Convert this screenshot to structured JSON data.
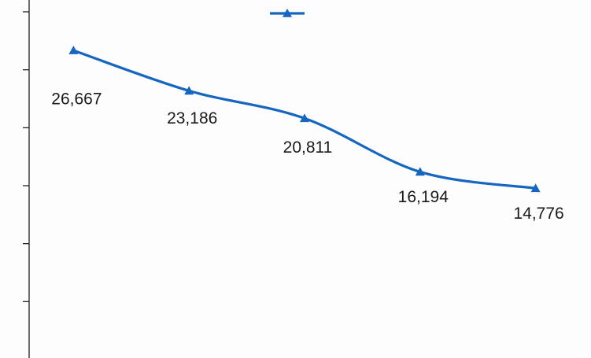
{
  "chart_data": {
    "type": "line",
    "categories": [
      null,
      null,
      null,
      null,
      null
    ],
    "series": [
      {
        "color": "#1466c0",
        "values": [
          26667,
          23186,
          20811,
          16194,
          14776
        ],
        "value_labels": [
          "26,667",
          "23,186",
          "20,811",
          "16,194",
          "14,776"
        ]
      }
    ],
    "ylim": [
      0,
      30000
    ],
    "yticks": [
      0,
      5000,
      10000,
      15000,
      20000,
      25000,
      30000
    ],
    "legend": "top",
    "grid": false
  }
}
